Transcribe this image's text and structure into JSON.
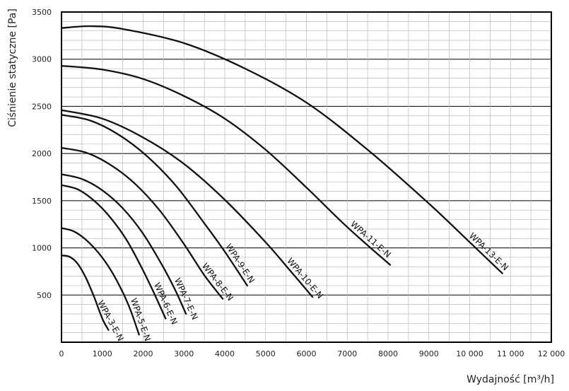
{
  "chart_data": {
    "type": "line",
    "title": "",
    "xlabel": "Wydajność [m³/h]",
    "ylabel": "Ciśnienie statyczne [Pa]",
    "xlim": [
      0,
      12000
    ],
    "ylim": [
      0,
      3500
    ],
    "x_ticks": [
      "0",
      "1000",
      "2000",
      "3000",
      "4000",
      "5000",
      "6000",
      "7000",
      "8000",
      "9000",
      "10 000",
      "11 000",
      "12 000"
    ],
    "y_ticks": [
      "500",
      "1000",
      "1500",
      "2000",
      "2500",
      "3000",
      "3500"
    ],
    "grid": true,
    "series": [
      {
        "name": "WPA-3-E-N",
        "x": [
          0,
          200,
          400,
          600,
          800,
          1000,
          1150
        ],
        "y": [
          920,
          905,
          830,
          680,
          480,
          250,
          130
        ]
      },
      {
        "name": "WPA-5-E-N",
        "x": [
          0,
          300,
          600,
          900,
          1200,
          1500,
          1700,
          1900
        ],
        "y": [
          1210,
          1175,
          1085,
          950,
          770,
          530,
          330,
          80
        ]
      },
      {
        "name": "WPA-6-E-N",
        "x": [
          0,
          400,
          800,
          1200,
          1600,
          2000,
          2300,
          2550
        ],
        "y": [
          1665,
          1620,
          1500,
          1320,
          1080,
          760,
          490,
          250
        ]
      },
      {
        "name": "WPA-7-E-N",
        "x": [
          0,
          500,
          1000,
          1500,
          2000,
          2500,
          2800,
          3050
        ],
        "y": [
          1780,
          1730,
          1610,
          1420,
          1150,
          790,
          540,
          300
        ]
      },
      {
        "name": "WPA-8-E-N",
        "x": [
          0,
          600,
          1200,
          1800,
          2400,
          3000,
          3500,
          3950
        ],
        "y": [
          2060,
          2010,
          1880,
          1680,
          1400,
          1040,
          710,
          460
        ]
      },
      {
        "name": "WPA-9-E-N",
        "x": [
          0,
          700,
          1400,
          2100,
          2800,
          3500,
          4000,
          4550
        ],
        "y": [
          2410,
          2350,
          2200,
          1970,
          1660,
          1260,
          960,
          600
        ]
      },
      {
        "name": "WPA-10-E-N",
        "x": [
          0,
          1000,
          2000,
          3000,
          4000,
          5000,
          5600,
          6150
        ],
        "y": [
          2460,
          2370,
          2170,
          1890,
          1510,
          1060,
          760,
          480
        ]
      },
      {
        "name": "WPA-11-E-N",
        "x": [
          0,
          1000,
          2000,
          3000,
          4000,
          5000,
          6000,
          7000,
          8050
        ],
        "y": [
          2930,
          2890,
          2790,
          2610,
          2370,
          2040,
          1640,
          1220,
          820
        ]
      },
      {
        "name": "WPA-13-E-N",
        "x": [
          0,
          700,
          1500,
          3000,
          4500,
          6000,
          7500,
          9000,
          10000,
          10800
        ],
        "y": [
          3330,
          3350,
          3320,
          3170,
          2900,
          2540,
          2040,
          1470,
          1060,
          730
        ]
      }
    ]
  }
}
